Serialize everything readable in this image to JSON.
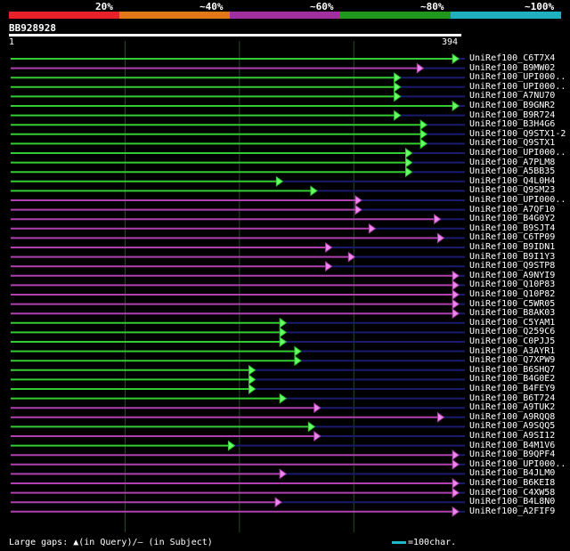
{
  "scale": {
    "labels": [
      "20%",
      "~40%",
      "~60%",
      "~80%",
      "~100%"
    ],
    "colors": [
      "#e8202a",
      "#e07818",
      "#a030a0",
      "#209820",
      "#20b0c0"
    ]
  },
  "query": {
    "name": "BB928928",
    "start_label": "1",
    "end_label": "394"
  },
  "colors": {
    "green": "#33cc33",
    "purple": "#b040b0",
    "gap": "#1a1a6e",
    "grid": "#2a4a2a",
    "triangle_green": "#66ff66",
    "triangle_purple": "#ee88ee"
  },
  "hits": [
    {
      "name": "UniRef100_C6T7X4",
      "end": 391,
      "color": "green"
    },
    {
      "name": "UniRef100_B9MW02",
      "end": 360,
      "color": "purple"
    },
    {
      "name": "UniRef100_UPI000..",
      "end": 340,
      "color": "green"
    },
    {
      "name": "UniRef100_UPI000..",
      "end": 340,
      "color": "green"
    },
    {
      "name": "UniRef100_A7NU70",
      "end": 340,
      "color": "green"
    },
    {
      "name": "UniRef100_B9GNR2",
      "end": 391,
      "color": "green"
    },
    {
      "name": "UniRef100_B9R724",
      "end": 340,
      "color": "green"
    },
    {
      "name": "UniRef100_B3H4G6",
      "end": 363,
      "color": "green"
    },
    {
      "name": "UniRef100_Q9STX1-2",
      "end": 363,
      "color": "green"
    },
    {
      "name": "UniRef100_Q9STX1",
      "end": 363,
      "color": "green"
    },
    {
      "name": "UniRef100_UPI000..",
      "end": 350,
      "color": "green"
    },
    {
      "name": "UniRef100_A7PLM8",
      "end": 350,
      "color": "green"
    },
    {
      "name": "UniRef100_A5BB35",
      "end": 350,
      "color": "green"
    },
    {
      "name": "UniRef100_Q4L0H4",
      "end": 237,
      "color": "green"
    },
    {
      "name": "UniRef100_Q9SM23",
      "end": 267,
      "color": "green"
    },
    {
      "name": "UniRef100_UPI000..",
      "end": 306,
      "color": "purple"
    },
    {
      "name": "UniRef100_A7QF10",
      "end": 306,
      "color": "purple"
    },
    {
      "name": "UniRef100_B4G0Y2",
      "end": 375,
      "color": "purple"
    },
    {
      "name": "UniRef100_B9SJT4",
      "end": 318,
      "color": "purple"
    },
    {
      "name": "UniRef100_C6TP09",
      "end": 378,
      "color": "purple"
    },
    {
      "name": "UniRef100_B9IDN1",
      "end": 280,
      "color": "purple"
    },
    {
      "name": "UniRef100_B9I1Y3",
      "end": 300,
      "color": "purple"
    },
    {
      "name": "UniRef100_Q9STP8",
      "end": 280,
      "color": "purple"
    },
    {
      "name": "UniRef100_A9NYI9",
      "end": 391,
      "color": "purple"
    },
    {
      "name": "UniRef100_Q10P83",
      "end": 391,
      "color": "purple"
    },
    {
      "name": "UniRef100_Q10P82",
      "end": 391,
      "color": "purple"
    },
    {
      "name": "UniRef100_C5WR05",
      "end": 391,
      "color": "purple"
    },
    {
      "name": "UniRef100_B8AK03",
      "end": 391,
      "color": "purple"
    },
    {
      "name": "UniRef100_C5YAM1",
      "end": 240,
      "color": "green"
    },
    {
      "name": "UniRef100_Q259C6",
      "end": 240,
      "color": "green"
    },
    {
      "name": "UniRef100_C0PJJ5",
      "end": 240,
      "color": "green"
    },
    {
      "name": "UniRef100_A3AYR1",
      "end": 253,
      "color": "green"
    },
    {
      "name": "UniRef100_Q7XPW9",
      "end": 253,
      "color": "green"
    },
    {
      "name": "UniRef100_B6SHQ7",
      "end": 213,
      "color": "green"
    },
    {
      "name": "UniRef100_B4G0E2",
      "end": 213,
      "color": "green"
    },
    {
      "name": "UniRef100_B4FEY9",
      "end": 213,
      "color": "green"
    },
    {
      "name": "UniRef100_B6T724",
      "end": 240,
      "color": "green"
    },
    {
      "name": "UniRef100_A9TUK2",
      "end": 270,
      "color": "purple"
    },
    {
      "name": "UniRef100_A9RQQ8",
      "end": 378,
      "color": "purple"
    },
    {
      "name": "UniRef100_A9SQQ5",
      "end": 265,
      "color": "green"
    },
    {
      "name": "UniRef100_A9SI12",
      "end": 270,
      "color": "purple"
    },
    {
      "name": "UniRef100_B4M1V6",
      "end": 195,
      "color": "green"
    },
    {
      "name": "UniRef100_B9QPF4",
      "end": 391,
      "color": "purple"
    },
    {
      "name": "UniRef100_UPI000..",
      "end": 391,
      "color": "purple"
    },
    {
      "name": "UniRef100_B4JLM0",
      "end": 240,
      "color": "purple"
    },
    {
      "name": "UniRef100_B6KEI8",
      "end": 391,
      "color": "purple"
    },
    {
      "name": "UniRef100_C4XW58",
      "end": 391,
      "color": "purple"
    },
    {
      "name": "UniRef100_B4L8N0",
      "end": 236,
      "color": "purple"
    },
    {
      "name": "UniRef100_A2FIF9",
      "end": 391,
      "color": "purple"
    }
  ],
  "footer": {
    "legend": "Large gaps: ▲(in Query)/– (in Subject)",
    "scale_text": "=100char."
  }
}
